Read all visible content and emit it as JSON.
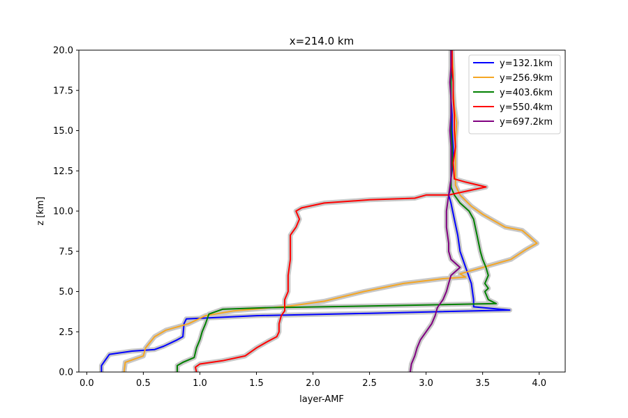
{
  "chart_data": {
    "type": "line",
    "title": "x=214.0 km",
    "xlabel": "layer-AMF",
    "ylabel": "z [km]",
    "xlim": [
      -0.07,
      4.23
    ],
    "ylim": [
      0,
      20
    ],
    "xticks": [
      "0.0",
      "0.5",
      "1.0",
      "1.5",
      "2.0",
      "2.5",
      "3.0",
      "3.5",
      "4.0"
    ],
    "yticks": [
      "0.0",
      "2.5",
      "5.0",
      "7.5",
      "10.0",
      "12.5",
      "15.0",
      "17.5",
      "20.0"
    ],
    "grid": false,
    "legend_position": "top-right",
    "uncertainty_band_color": "#c8c8c8",
    "series": [
      {
        "name": "y=132.1km",
        "color": "#0000ff",
        "points": [
          [
            0.13,
            0
          ],
          [
            0.13,
            0.4
          ],
          [
            0.17,
            0.8
          ],
          [
            0.2,
            1.1
          ],
          [
            0.4,
            1.3
          ],
          [
            0.6,
            1.4
          ],
          [
            0.68,
            1.6
          ],
          [
            0.8,
            2.0
          ],
          [
            0.85,
            2.2
          ],
          [
            0.86,
            3.0
          ],
          [
            0.88,
            3.3
          ],
          [
            1.5,
            3.5
          ],
          [
            2.5,
            3.65
          ],
          [
            3.74,
            3.85
          ],
          [
            3.42,
            4.05
          ],
          [
            3.42,
            4.5
          ],
          [
            3.4,
            5.5
          ],
          [
            3.35,
            6.5
          ],
          [
            3.3,
            7.5
          ],
          [
            3.28,
            8.5
          ],
          [
            3.25,
            9.5
          ],
          [
            3.22,
            10.5
          ],
          [
            3.2,
            11.0
          ],
          [
            3.22,
            11.5
          ],
          [
            3.22,
            12.0
          ],
          [
            3.24,
            13.0
          ],
          [
            3.24,
            14.0
          ],
          [
            3.23,
            15.0
          ],
          [
            3.23,
            16.0
          ],
          [
            3.22,
            17.0
          ],
          [
            3.22,
            18.0
          ],
          [
            3.23,
            19.0
          ],
          [
            3.23,
            20.0
          ]
        ]
      },
      {
        "name": "y=256.9km",
        "color": "#f5a623",
        "points": [
          [
            0.33,
            0
          ],
          [
            0.34,
            0.6
          ],
          [
            0.5,
            1.0
          ],
          [
            0.52,
            1.5
          ],
          [
            0.6,
            2.2
          ],
          [
            0.7,
            2.6
          ],
          [
            0.9,
            3.0
          ],
          [
            1.05,
            3.5
          ],
          [
            1.3,
            3.8
          ],
          [
            1.8,
            4.1
          ],
          [
            2.1,
            4.4
          ],
          [
            2.45,
            5.0
          ],
          [
            2.8,
            5.5
          ],
          [
            3.15,
            5.8
          ],
          [
            3.35,
            5.9
          ],
          [
            3.3,
            6.1
          ],
          [
            3.5,
            6.5
          ],
          [
            3.75,
            7.0
          ],
          [
            3.88,
            7.6
          ],
          [
            3.98,
            8.0
          ],
          [
            3.9,
            8.5
          ],
          [
            3.85,
            8.8
          ],
          [
            3.7,
            9.0
          ],
          [
            3.6,
            9.4
          ],
          [
            3.5,
            9.8
          ],
          [
            3.4,
            10.3
          ],
          [
            3.3,
            11.0
          ],
          [
            3.26,
            11.6
          ],
          [
            3.26,
            12.5
          ],
          [
            3.26,
            13.5
          ],
          [
            3.26,
            14.5
          ],
          [
            3.27,
            15.5
          ],
          [
            3.25,
            16.5
          ],
          [
            3.24,
            17.5
          ],
          [
            3.24,
            18.5
          ],
          [
            3.23,
            20.0
          ]
        ]
      },
      {
        "name": "y=403.6km",
        "color": "#008000",
        "points": [
          [
            0.8,
            0
          ],
          [
            0.8,
            0.4
          ],
          [
            0.85,
            0.6
          ],
          [
            0.95,
            0.9
          ],
          [
            0.97,
            1.5
          ],
          [
            1.0,
            2.0
          ],
          [
            1.02,
            2.5
          ],
          [
            1.05,
            3.0
          ],
          [
            1.08,
            3.6
          ],
          [
            1.2,
            3.9
          ],
          [
            1.6,
            4.0
          ],
          [
            2.5,
            4.1
          ],
          [
            3.62,
            4.25
          ],
          [
            3.55,
            4.5
          ],
          [
            3.52,
            5.0
          ],
          [
            3.55,
            5.2
          ],
          [
            3.52,
            5.5
          ],
          [
            3.55,
            6.0
          ],
          [
            3.53,
            6.5
          ],
          [
            3.5,
            7.0
          ],
          [
            3.48,
            7.5
          ],
          [
            3.45,
            8.5
          ],
          [
            3.42,
            9.5
          ],
          [
            3.38,
            10.0
          ],
          [
            3.3,
            10.5
          ],
          [
            3.25,
            11.0
          ],
          [
            3.22,
            11.5
          ],
          [
            3.22,
            12.0
          ],
          [
            3.23,
            13.0
          ],
          [
            3.23,
            14.0
          ],
          [
            3.22,
            15.0
          ],
          [
            3.22,
            16.0
          ],
          [
            3.22,
            17.0
          ],
          [
            3.22,
            18.0
          ],
          [
            3.22,
            20.0
          ]
        ]
      },
      {
        "name": "y=550.4km",
        "color": "#ff0000",
        "points": [
          [
            0.97,
            0
          ],
          [
            0.96,
            0.3
          ],
          [
            1.0,
            0.5
          ],
          [
            1.2,
            0.7
          ],
          [
            1.4,
            1.0
          ],
          [
            1.5,
            1.5
          ],
          [
            1.6,
            1.9
          ],
          [
            1.68,
            2.2
          ],
          [
            1.7,
            2.5
          ],
          [
            1.7,
            3.0
          ],
          [
            1.72,
            3.5
          ],
          [
            1.75,
            3.8
          ],
          [
            1.75,
            4.5
          ],
          [
            1.78,
            5.0
          ],
          [
            1.78,
            5.5
          ],
          [
            1.78,
            6.0
          ],
          [
            1.8,
            7.0
          ],
          [
            1.8,
            8.0
          ],
          [
            1.8,
            8.5
          ],
          [
            1.85,
            9.0
          ],
          [
            1.88,
            9.5
          ],
          [
            1.85,
            10.0
          ],
          [
            1.9,
            10.2
          ],
          [
            2.1,
            10.5
          ],
          [
            2.5,
            10.7
          ],
          [
            2.9,
            10.8
          ],
          [
            3.0,
            11.0
          ],
          [
            3.2,
            11.0
          ],
          [
            3.53,
            11.5
          ],
          [
            3.35,
            11.8
          ],
          [
            3.25,
            12.0
          ],
          [
            3.24,
            13.0
          ],
          [
            3.26,
            14.0
          ],
          [
            3.25,
            15.0
          ],
          [
            3.25,
            16.0
          ],
          [
            3.24,
            17.0
          ],
          [
            3.24,
            18.0
          ],
          [
            3.23,
            19.0
          ],
          [
            3.23,
            20.0
          ]
        ]
      },
      {
        "name": "y=697.2km",
        "color": "#800080",
        "points": [
          [
            2.86,
            0
          ],
          [
            2.87,
            0.5
          ],
          [
            2.9,
            1.0
          ],
          [
            2.92,
            1.5
          ],
          [
            2.95,
            2.0
          ],
          [
            3.0,
            2.5
          ],
          [
            3.05,
            3.0
          ],
          [
            3.08,
            3.5
          ],
          [
            3.1,
            4.0
          ],
          [
            3.15,
            4.5
          ],
          [
            3.18,
            5.0
          ],
          [
            3.2,
            5.5
          ],
          [
            3.22,
            6.0
          ],
          [
            3.3,
            6.5
          ],
          [
            3.22,
            7.0
          ],
          [
            3.2,
            7.5
          ],
          [
            3.2,
            8.0
          ],
          [
            3.18,
            9.0
          ],
          [
            3.18,
            10.0
          ],
          [
            3.2,
            11.0
          ],
          [
            3.22,
            12.0
          ],
          [
            3.22,
            13.0
          ],
          [
            3.22,
            14.0
          ],
          [
            3.21,
            15.0
          ],
          [
            3.22,
            16.0
          ],
          [
            3.22,
            17.0
          ],
          [
            3.21,
            18.0
          ],
          [
            3.22,
            19.0
          ],
          [
            3.22,
            20.0
          ]
        ]
      }
    ]
  }
}
